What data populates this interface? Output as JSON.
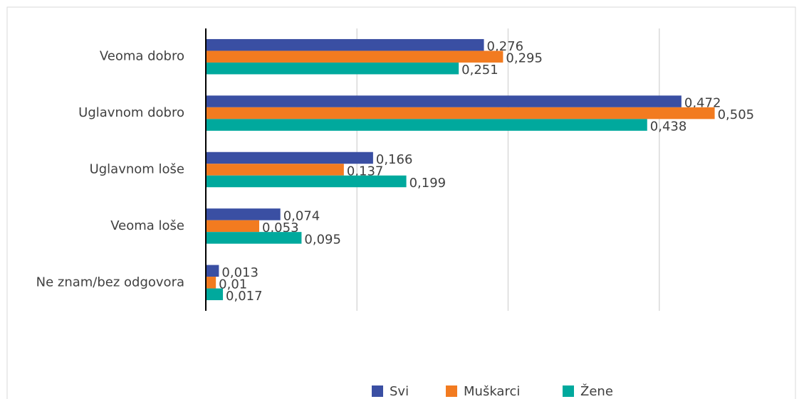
{
  "chart_data": {
    "type": "bar",
    "orientation": "horizontal",
    "categories": [
      "Veoma dobro",
      "Uglavnom dobro",
      "Uglavnom loše",
      "Veoma loše",
      "Ne znam/bez odgovora"
    ],
    "series": [
      {
        "name": "Svi",
        "color": "#3a4fa3",
        "values": [
          0.276,
          0.472,
          0.166,
          0.074,
          0.013
        ],
        "value_labels": [
          "0,276",
          "0,472",
          "0,166",
          "0,074",
          "0,013"
        ]
      },
      {
        "name": "Muškarci",
        "color": "#f27b20",
        "values": [
          0.295,
          0.505,
          0.137,
          0.053,
          0.01
        ],
        "value_labels": [
          "0,295",
          "0,505",
          "0,137",
          "0,053",
          "0,01"
        ]
      },
      {
        "name": "Žene",
        "color": "#00a99d",
        "values": [
          0.251,
          0.438,
          0.199,
          0.095,
          0.017
        ],
        "value_labels": [
          "0,251",
          "0,438",
          "0,199",
          "0,095",
          "0,017"
        ]
      }
    ],
    "xlim": [
      0,
      0.55
    ],
    "xticks": [
      0,
      0.15,
      0.3,
      0.45
    ],
    "grid": true,
    "legend": "bottom"
  }
}
